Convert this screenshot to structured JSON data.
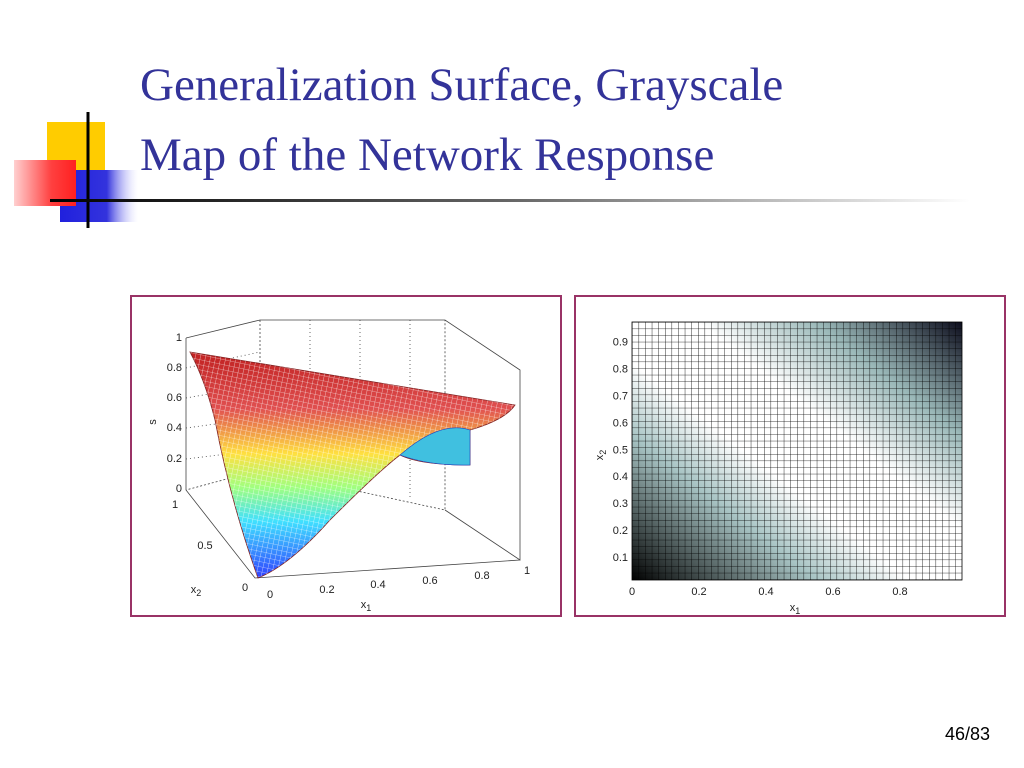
{
  "title_lines": [
    "Generalization Surface, Grayscale",
    "Map of the Network Response"
  ],
  "page_number": "46/83",
  "surface_plot": {
    "z_label": "s",
    "x_label": "x",
    "x_label_sub": "1",
    "y_label": "x",
    "y_label_sub": "2",
    "z_ticks": [
      "0",
      "0.2",
      "0.4",
      "0.6",
      "0.8",
      "1"
    ],
    "y_ticks": [
      "0",
      "0.5",
      "1"
    ],
    "x_ticks": [
      "0",
      "0.2",
      "0.4",
      "0.6",
      "0.8",
      "1"
    ]
  },
  "grayscale_map": {
    "x_label": "x",
    "x_label_sub": "1",
    "y_label": "x",
    "y_label_sub": "2",
    "x_ticks": [
      "0",
      "0.2",
      "0.4",
      "0.6",
      "0.8"
    ],
    "y_ticks": [
      "0.1",
      "0.2",
      "0.3",
      "0.4",
      "0.5",
      "0.6",
      "0.7",
      "0.8",
      "0.9"
    ]
  }
}
